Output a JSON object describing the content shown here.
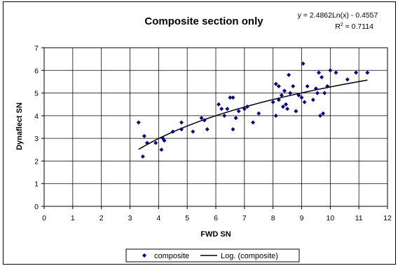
{
  "chart_data": {
    "type": "scatter",
    "title": "Composite section only",
    "equation": "y = 2.4862Ln(x) - 0.4557",
    "r2_prefix": "R",
    "r2_sup": "2",
    "r2_value": " = 0.7114",
    "xlabel": "FWD SN",
    "ylabel": "Dynaflect SN",
    "xlim": [
      0,
      12
    ],
    "ylim": [
      0,
      7
    ],
    "xticks": [
      "0",
      "1",
      "2",
      "3",
      "4",
      "5",
      "6",
      "7",
      "8",
      "9",
      "10",
      "11",
      "12"
    ],
    "yticks": [
      "0",
      "1",
      "2",
      "3",
      "4",
      "5",
      "6",
      "7"
    ],
    "grid": true,
    "legend_position": "bottom",
    "series": [
      {
        "name": "composite",
        "marker": "diamond",
        "color": "#000080",
        "points": [
          [
            3.3,
            3.7
          ],
          [
            3.45,
            2.2
          ],
          [
            3.5,
            3.1
          ],
          [
            3.6,
            2.8
          ],
          [
            3.9,
            2.8
          ],
          [
            4.1,
            2.5
          ],
          [
            4.15,
            3.0
          ],
          [
            4.2,
            2.9
          ],
          [
            4.5,
            3.3
          ],
          [
            4.8,
            3.4
          ],
          [
            4.8,
            3.7
          ],
          [
            5.2,
            3.3
          ],
          [
            5.5,
            3.9
          ],
          [
            5.6,
            3.8
          ],
          [
            5.7,
            3.4
          ],
          [
            6.1,
            4.5
          ],
          [
            6.2,
            4.3
          ],
          [
            6.3,
            4.0
          ],
          [
            6.4,
            4.3
          ],
          [
            6.5,
            4.8
          ],
          [
            6.6,
            3.4
          ],
          [
            6.6,
            4.8
          ],
          [
            6.7,
            3.9
          ],
          [
            6.8,
            4.2
          ],
          [
            7.0,
            4.3
          ],
          [
            7.1,
            4.4
          ],
          [
            7.3,
            3.7
          ],
          [
            7.5,
            4.1
          ],
          [
            8.0,
            4.6
          ],
          [
            8.1,
            4.0
          ],
          [
            8.1,
            5.4
          ],
          [
            8.2,
            4.7
          ],
          [
            8.2,
            5.3
          ],
          [
            8.3,
            4.9
          ],
          [
            8.35,
            4.4
          ],
          [
            8.4,
            5.1
          ],
          [
            8.45,
            4.5
          ],
          [
            8.5,
            4.3
          ],
          [
            8.55,
            5.8
          ],
          [
            8.6,
            5.0
          ],
          [
            8.7,
            5.3
          ],
          [
            8.8,
            4.2
          ],
          [
            8.9,
            4.9
          ],
          [
            9.0,
            4.8
          ],
          [
            9.05,
            6.3
          ],
          [
            9.1,
            4.6
          ],
          [
            9.2,
            5.3
          ],
          [
            9.4,
            4.7
          ],
          [
            9.5,
            5.2
          ],
          [
            9.55,
            5.0
          ],
          [
            9.6,
            5.9
          ],
          [
            9.65,
            4.0
          ],
          [
            9.7,
            5.7
          ],
          [
            9.75,
            4.1
          ],
          [
            9.8,
            5.0
          ],
          [
            9.9,
            5.3
          ],
          [
            10.0,
            6.0
          ],
          [
            10.2,
            5.9
          ],
          [
            10.6,
            5.6
          ],
          [
            10.9,
            5.9
          ],
          [
            11.3,
            5.9
          ]
        ]
      }
    ],
    "trendline": {
      "name": "Log. (composite)",
      "type": "logarithmic",
      "coef_a": 2.4862,
      "coef_b": -0.4557,
      "x_start": 3.3,
      "x_end": 11.3,
      "color": "#000000"
    }
  }
}
